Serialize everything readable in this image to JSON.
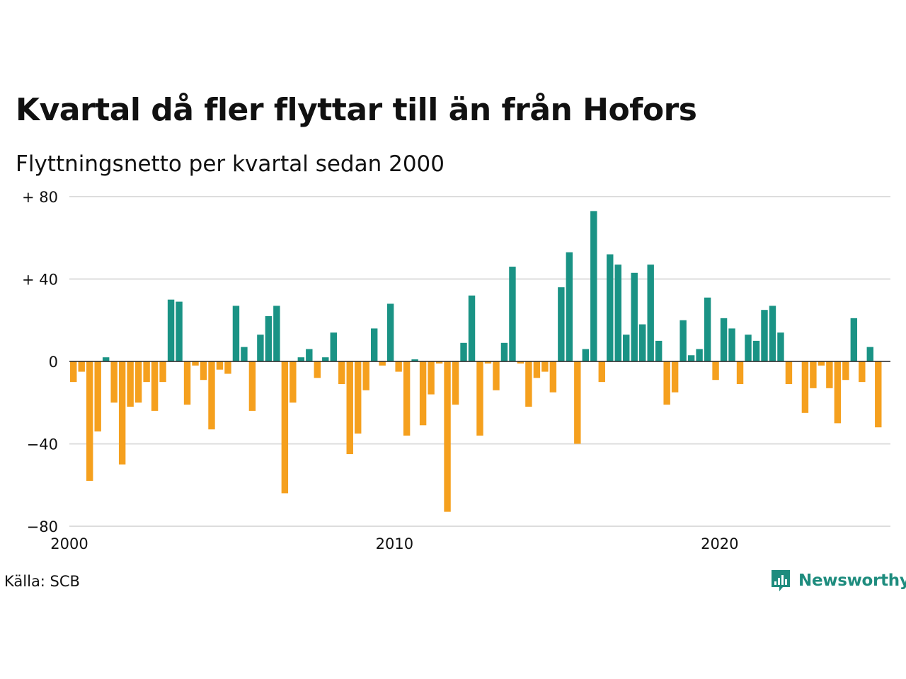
{
  "title": "Kvartal då fler flyttar till än från Hofors",
  "subtitle": "Flyttningsnetto per kvartal sedan 2000",
  "source": "Källa: SCB",
  "brand": {
    "name": "Newsworthy",
    "icon": "newsworthy-logo-icon",
    "color": "#1e8c7e"
  },
  "colors": {
    "positive": "#1a9385",
    "negative": "#f5a01e",
    "grid": "#dddddd",
    "zero": "#222222"
  },
  "chart_data": {
    "type": "bar",
    "title": "Kvartal då fler flyttar till än från Hofors",
    "subtitle": "Flyttningsnetto per kvartal sedan 2000",
    "xlabel": "",
    "ylabel": "",
    "ylim": [
      -80,
      80
    ],
    "xlim": [
      2000,
      2025.25
    ],
    "y_ticks": [
      {
        "value": 80,
        "label": "+ 80"
      },
      {
        "value": 40,
        "label": "+ 40"
      },
      {
        "value": 0,
        "label": "0"
      },
      {
        "value": -40,
        "label": "−40"
      },
      {
        "value": -80,
        "label": "−80"
      }
    ],
    "x_ticks": [
      {
        "value": 2000,
        "label": "2000"
      },
      {
        "value": 2010,
        "label": "2010"
      },
      {
        "value": 2020,
        "label": "2020"
      }
    ],
    "grid": true,
    "legend": "none",
    "categories": [
      "2000 K1",
      "2000 K2",
      "2000 K3",
      "2000 K4",
      "2001 K1",
      "2001 K2",
      "2001 K3",
      "2001 K4",
      "2002 K1",
      "2002 K2",
      "2002 K3",
      "2002 K4",
      "2003 K1",
      "2003 K2",
      "2003 K3",
      "2003 K4",
      "2004 K1",
      "2004 K2",
      "2004 K3",
      "2004 K4",
      "2005 K1",
      "2005 K2",
      "2005 K3",
      "2005 K4",
      "2006 K1",
      "2006 K2",
      "2006 K3",
      "2006 K4",
      "2007 K1",
      "2007 K2",
      "2007 K3",
      "2007 K4",
      "2008 K1",
      "2008 K2",
      "2008 K3",
      "2008 K4",
      "2009 K1",
      "2009 K2",
      "2009 K3",
      "2009 K4",
      "2010 K1",
      "2010 K2",
      "2010 K3",
      "2010 K4",
      "2011 K1",
      "2011 K2",
      "2011 K3",
      "2011 K4",
      "2012 K1",
      "2012 K2",
      "2012 K3",
      "2012 K4",
      "2013 K1",
      "2013 K2",
      "2013 K3",
      "2013 K4",
      "2014 K1",
      "2014 K2",
      "2014 K3",
      "2014 K4",
      "2015 K1",
      "2015 K2",
      "2015 K3",
      "2015 K4",
      "2016 K1",
      "2016 K2",
      "2016 K3",
      "2016 K4",
      "2017 K1",
      "2017 K2",
      "2017 K3",
      "2017 K4",
      "2018 K1",
      "2018 K2",
      "2018 K3",
      "2018 K4",
      "2019 K1",
      "2019 K2",
      "2019 K3",
      "2019 K4",
      "2020 K1",
      "2020 K2",
      "2020 K3",
      "2020 K4",
      "2021 K1",
      "2021 K2",
      "2021 K3",
      "2021 K4",
      "2022 K1",
      "2022 K2",
      "2022 K3",
      "2022 K4",
      "2023 K1",
      "2023 K2",
      "2023 K3",
      "2023 K4",
      "2024 K1",
      "2024 K2",
      "2024 K3",
      "2024 K4",
      "2025 K1"
    ],
    "values": [
      -10,
      -5,
      -58,
      -34,
      2,
      -20,
      -50,
      -22,
      -20,
      -10,
      -24,
      -10,
      30,
      29,
      -21,
      -2,
      -9,
      -33,
      -4,
      -6,
      27,
      7,
      -24,
      13,
      22,
      27,
      -64,
      -20,
      2,
      6,
      -8,
      2,
      14,
      -11,
      -45,
      -35,
      -14,
      16,
      -2,
      28,
      -5,
      -36,
      1,
      -31,
      -16,
      -1,
      -73,
      -21,
      9,
      32,
      -36,
      -1,
      -14,
      9,
      46,
      -1,
      -22,
      -8,
      -5,
      -15,
      36,
      53,
      -40,
      6,
      73,
      -10,
      52,
      47,
      13,
      43,
      18,
      47,
      10,
      -21,
      -15,
      20,
      3,
      6,
      31,
      -9,
      21,
      16,
      -11,
      13,
      10,
      25,
      27,
      14,
      -11,
      0,
      -25,
      -13,
      -2,
      -13,
      -30,
      -9,
      21,
      -10,
      7,
      -32,
      0
    ]
  }
}
